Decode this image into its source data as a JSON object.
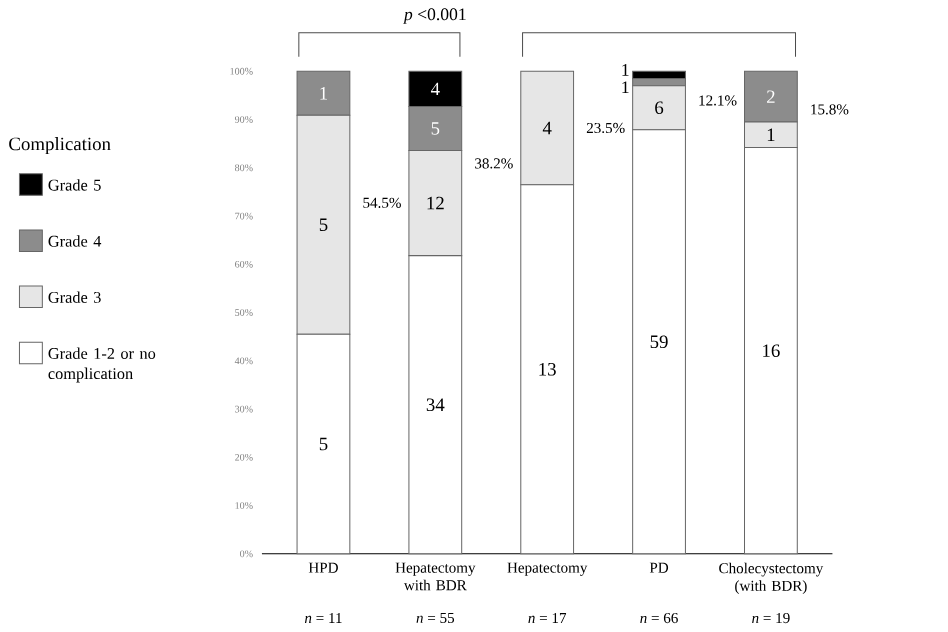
{
  "chart_data": {
    "type": "bar",
    "stacked": true,
    "legend_title": "Complication",
    "legend": "left",
    "categories": [
      "HPD",
      "Hepatectomy with BDR",
      "Hepatectomy",
      "PD",
      "Cholecystectomy (with BDR)"
    ],
    "series": [
      {
        "name": "Grade 1-2 or no complication",
        "color": "#ffffff",
        "values": [
          45.5,
          61.8,
          76.5,
          87.9,
          84.2
        ]
      },
      {
        "name": "Grade 3",
        "color": "#e6e6e6",
        "values": [
          45.4,
          21.8,
          23.5,
          9.1,
          5.3
        ]
      },
      {
        "name": "Grade 4",
        "color": "#8c8c8c",
        "values": [
          9.1,
          9.1,
          0,
          1.5,
          10.5
        ]
      },
      {
        "name": "Grade 5",
        "color": "#000000",
        "values": [
          0,
          7.3,
          0,
          1.5,
          0
        ]
      }
    ],
    "ylim": [
      0,
      100
    ],
    "yticks": [
      {
        "value": 0,
        "label": "0%"
      },
      {
        "value": 10,
        "label": "10%"
      },
      {
        "value": 20,
        "label": "20%"
      },
      {
        "value": 30,
        "label": "30%"
      },
      {
        "value": 40,
        "label": "40%"
      },
      {
        "value": 50,
        "label": "50%"
      },
      {
        "value": 60,
        "label": "60%"
      },
      {
        "value": 70,
        "label": "70%"
      },
      {
        "value": 80,
        "label": "80%"
      },
      {
        "value": 90,
        "label": "90%"
      },
      {
        "value": 100,
        "label": "100%"
      }
    ],
    "annotations": [
      "*p* <0.001",
      "54.5%",
      "38.2%",
      "23.5%",
      "12.1%",
      "15.8%",
      "*n* = 11",
      "*n* = 55",
      "*n* = 17",
      "*n* = 66",
      "*n* = 19",
      "5",
      "5",
      "1",
      "34",
      "12",
      "5",
      "4",
      "13",
      "4",
      "59",
      "6",
      "1",
      "1",
      "16",
      "1",
      "2"
    ]
  }
}
